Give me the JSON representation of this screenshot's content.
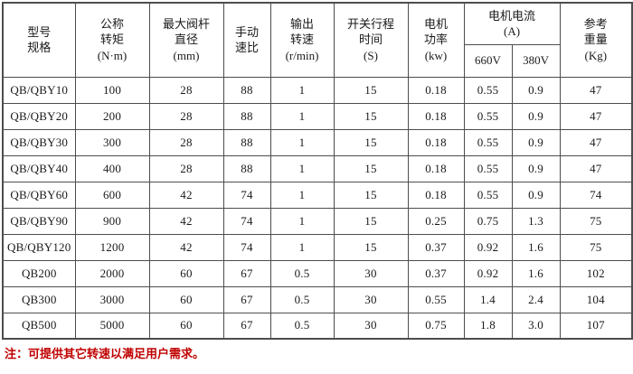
{
  "table": {
    "headers": {
      "model": "型号\n规格",
      "torque": "公称\n转矩\n(N·m)",
      "stem_diameter": "最大阀杆\n直径\n(mm)",
      "manual_ratio": "手动\n速比",
      "output_speed": "输出\n转速\n(r/min)",
      "travel_time": "开关行程\n时间\n(S)",
      "motor_power": "电机\n功率\n(kw)",
      "motor_current": "电机电流\n(A)",
      "v660": "660V",
      "v380": "380V",
      "weight": "参考\n重量\n(Kg)"
    },
    "rows": [
      [
        "QB/QBY10",
        "100",
        "28",
        "88",
        "1",
        "15",
        "0.18",
        "0.55",
        "0.9",
        "47"
      ],
      [
        "QB/QBY20",
        "200",
        "28",
        "88",
        "1",
        "15",
        "0.18",
        "0.55",
        "0.9",
        "47"
      ],
      [
        "QB/QBY30",
        "300",
        "28",
        "88",
        "1",
        "15",
        "0.18",
        "0.55",
        "0.9",
        "47"
      ],
      [
        "QB/QBY40",
        "400",
        "28",
        "88",
        "1",
        "15",
        "0.18",
        "0.55",
        "0.9",
        "47"
      ],
      [
        "QB/QBY60",
        "600",
        "42",
        "74",
        "1",
        "15",
        "0.18",
        "0.55",
        "0.9",
        "74"
      ],
      [
        "QB/QBY90",
        "900",
        "42",
        "74",
        "1",
        "15",
        "0.25",
        "0.75",
        "1.3",
        "75"
      ],
      [
        "QB/QBY120",
        "1200",
        "42",
        "74",
        "1",
        "15",
        "0.37",
        "0.92",
        "1.6",
        "75"
      ],
      [
        "QB200",
        "2000",
        "60",
        "67",
        "0.5",
        "30",
        "0.37",
        "0.92",
        "1.6",
        "102"
      ],
      [
        "QB300",
        "3000",
        "60",
        "67",
        "0.5",
        "30",
        "0.55",
        "1.4",
        "2.4",
        "104"
      ],
      [
        "QB500",
        "5000",
        "60",
        "67",
        "0.5",
        "30",
        "0.75",
        "1.8",
        "3.0",
        "107"
      ]
    ]
  },
  "note": {
    "text": "注：可提供其它转速以满足用户需求。",
    "color": "#c00000"
  },
  "colors": {
    "border": "#4d4d4d",
    "text": "#1a1a1a",
    "background": "#ffffff"
  }
}
